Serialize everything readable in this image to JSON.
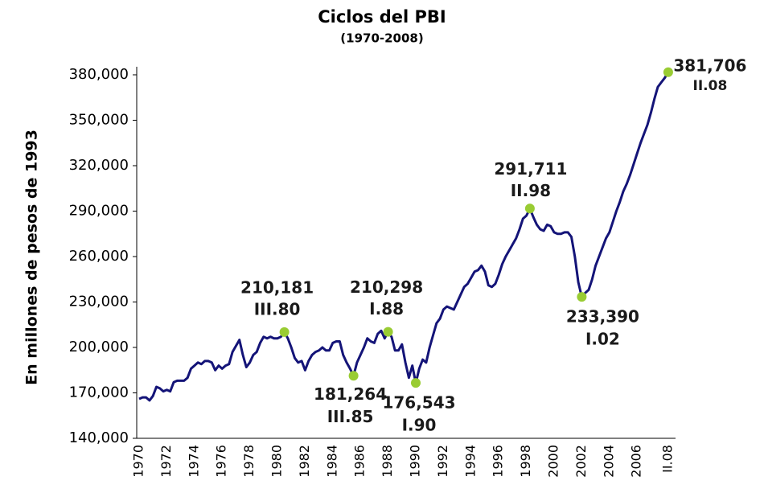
{
  "chart_data": {
    "type": "line",
    "title": "Ciclos del PBI",
    "subtitle": "(1970-2008)",
    "y_label": "En millones de pesos de 1993",
    "categories": [
      "1970",
      null,
      null,
      null,
      null,
      null,
      null,
      null,
      "1972",
      null,
      null,
      null,
      null,
      null,
      null,
      null,
      "1974",
      null,
      null,
      null,
      null,
      null,
      null,
      null,
      "1976",
      null,
      null,
      null,
      null,
      null,
      null,
      null,
      "1978",
      null,
      null,
      null,
      null,
      null,
      null,
      null,
      "1980",
      null,
      null,
      null,
      null,
      null,
      null,
      null,
      "1982",
      null,
      null,
      null,
      null,
      null,
      null,
      null,
      "1984",
      null,
      null,
      null,
      null,
      null,
      null,
      null,
      "1986",
      null,
      null,
      null,
      null,
      null,
      null,
      null,
      "1988",
      null,
      null,
      null,
      null,
      null,
      null,
      null,
      "1990",
      null,
      null,
      null,
      null,
      null,
      null,
      null,
      "1992",
      null,
      null,
      null,
      null,
      null,
      null,
      null,
      "1994",
      null,
      null,
      null,
      null,
      null,
      null,
      null,
      "1996",
      null,
      null,
      null,
      null,
      null,
      null,
      null,
      "1998",
      null,
      null,
      null,
      null,
      null,
      null,
      null,
      "2000",
      null,
      null,
      null,
      null,
      null,
      null,
      null,
      "2002",
      null,
      null,
      null,
      null,
      null,
      null,
      null,
      "2004",
      null,
      null,
      null,
      null,
      null,
      null,
      null,
      "2006",
      null,
      null,
      null,
      null,
      null,
      null,
      null,
      null,
      "II.08"
    ],
    "series": [
      {
        "color": "#141478",
        "values": [
          166000,
          167000,
          167000,
          165000,
          168000,
          174000,
          173000,
          171000,
          172000,
          171000,
          177000,
          178000,
          178000,
          178000,
          180000,
          186000,
          188000,
          190000,
          189000,
          191000,
          191000,
          190000,
          185000,
          188000,
          186000,
          188000,
          189000,
          197000,
          201000,
          205000,
          195000,
          187000,
          190000,
          195000,
          197000,
          203000,
          207000,
          206000,
          207000,
          206000,
          206000,
          207000,
          210181,
          206000,
          200000,
          193000,
          190000,
          191000,
          185000,
          191000,
          195000,
          197000,
          198000,
          200000,
          198000,
          198000,
          203000,
          204000,
          204000,
          195000,
          190000,
          186000,
          181264,
          190000,
          195000,
          200000,
          206000,
          204000,
          203000,
          209000,
          211000,
          206000,
          210298,
          207000,
          198000,
          198000,
          202000,
          190000,
          180000,
          188000,
          176543,
          186000,
          192000,
          190000,
          200000,
          208000,
          216000,
          219000,
          225000,
          227000,
          226000,
          225000,
          230000,
          235000,
          240000,
          242000,
          246000,
          250000,
          251000,
          254000,
          250000,
          241000,
          240000,
          242000,
          248000,
          255000,
          260000,
          264000,
          268000,
          272000,
          278000,
          285000,
          287000,
          291711,
          286000,
          281000,
          278000,
          277000,
          281000,
          280000,
          276000,
          275000,
          275000,
          276000,
          276000,
          273000,
          260000,
          243000,
          233390,
          236000,
          238000,
          245000,
          254000,
          260000,
          266000,
          272000,
          276000,
          283000,
          290000,
          296000,
          303000,
          308000,
          314000,
          321000,
          328000,
          335000,
          341000,
          347000,
          355000,
          364000,
          372000,
          375000,
          378000,
          381706
        ]
      }
    ],
    "highlights": {
      "color": "#99cc33",
      "points": [
        {
          "index": 42,
          "label": "210,181",
          "period": "III.80"
        },
        {
          "index": 62,
          "label": "181,264",
          "period": "III.85"
        },
        {
          "index": 72,
          "label": "210,298",
          "period": "I.88"
        },
        {
          "index": 80,
          "label": "176,543",
          "period": "I.90"
        },
        {
          "index": 113,
          "label": "291,711",
          "period": "II.98"
        },
        {
          "index": 128,
          "label": "233,390",
          "period": "I.02"
        },
        {
          "index": 153,
          "label": "381,706",
          "period": "II.08"
        }
      ]
    },
    "ylim": [
      140000,
      380000
    ],
    "yticks": [
      {
        "value": 140000,
        "label": "140,000"
      },
      {
        "value": 170000,
        "label": "170,000"
      },
      {
        "value": 200000,
        "label": "200,000"
      },
      {
        "value": 230000,
        "label": "230,000"
      },
      {
        "value": 260000,
        "label": "260,000"
      },
      {
        "value": 290000,
        "label": "290,000"
      },
      {
        "value": 320000,
        "label": "320,000"
      },
      {
        "value": 350000,
        "label": "350,000"
      },
      {
        "value": 380000,
        "label": "380,000"
      }
    ]
  }
}
